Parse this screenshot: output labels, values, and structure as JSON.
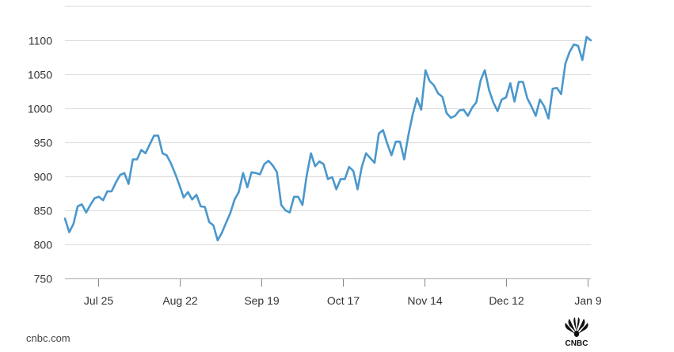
{
  "source": "cnbc.com",
  "logo": {
    "icon": "cnbc-peacock-logo-icon",
    "text": "CNBC"
  },
  "colors": {
    "line": "#4a97cc",
    "grid": "#d9d9d9",
    "axis": "#aaaaaa",
    "text": "#333333"
  },
  "chart_data": {
    "type": "line",
    "title": "",
    "xlabel": "",
    "ylabel": "",
    "ylim": [
      750,
      1110
    ],
    "y_ticks": [
      750,
      800,
      850,
      900,
      950,
      1000,
      1050,
      1100
    ],
    "x_ticks": [
      "Jul 25",
      "Aug 22",
      "Sep 19",
      "Oct 17",
      "Nov 14",
      "Dec 12",
      "Jan 9"
    ],
    "grid": true,
    "legend": "none",
    "series": [
      {
        "values": [
          838,
          818,
          830,
          856,
          859,
          847,
          858,
          868,
          870,
          865,
          878,
          878,
          891,
          902,
          905,
          889,
          925,
          925,
          939,
          934,
          947,
          960,
          960,
          934,
          931,
          919,
          904,
          887,
          869,
          877,
          866,
          873,
          856,
          855,
          833,
          828,
          806,
          817,
          832,
          846,
          866,
          877,
          905,
          884,
          906,
          905,
          903,
          918,
          923,
          916,
          906,
          858,
          850,
          847,
          870,
          870,
          858,
          901,
          934,
          915,
          922,
          918,
          896,
          899,
          881,
          896,
          896,
          914,
          908,
          881,
          914,
          934,
          927,
          920,
          963,
          968,
          948,
          931,
          951,
          951,
          925,
          961,
          991,
          1015,
          998,
          1056,
          1040,
          1034,
          1022,
          1017,
          993,
          986,
          989,
          997,
          998,
          989,
          1001,
          1009,
          1041,
          1056,
          1027,
          1009,
          996,
          1013,
          1016,
          1037,
          1010,
          1039,
          1039,
          1015,
          1003,
          989,
          1013,
          1003,
          985,
          1029,
          1030,
          1021,
          1066,
          1083,
          1094,
          1092,
          1071,
          1105,
          1100
        ]
      }
    ]
  }
}
